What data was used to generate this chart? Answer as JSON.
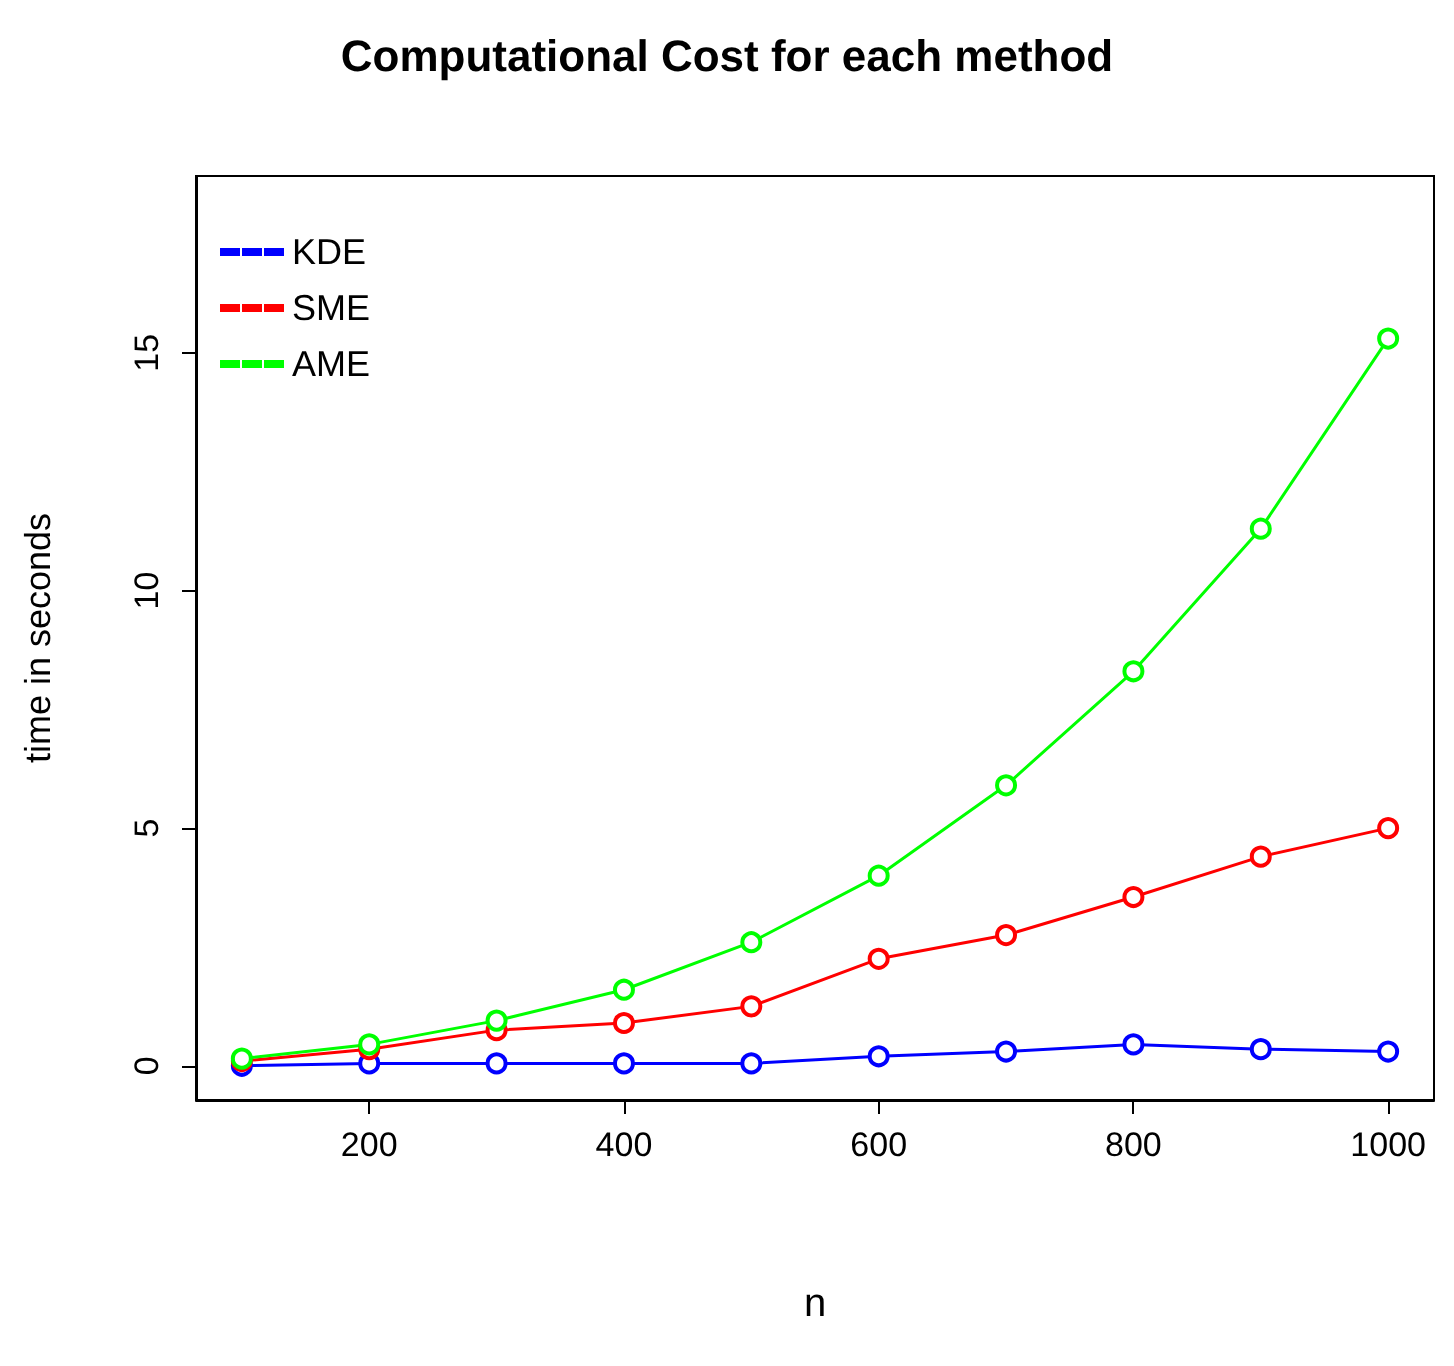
{
  "chart_data": {
    "type": "line",
    "title": "Computational Cost for each method",
    "xlabel": "n",
    "ylabel": "time in seconds",
    "x": [
      100,
      200,
      300,
      400,
      500,
      600,
      700,
      800,
      900,
      1000
    ],
    "series": [
      {
        "name": "KDE",
        "color": "#0000ff",
        "values": [
          0.0,
          0.05,
          0.05,
          0.05,
          0.05,
          0.2,
          0.3,
          0.45,
          0.35,
          0.3
        ]
      },
      {
        "name": "SME",
        "color": "#ff0000",
        "values": [
          0.1,
          0.35,
          0.75,
          0.9,
          1.25,
          2.25,
          2.75,
          3.55,
          4.4,
          5.0
        ]
      },
      {
        "name": "AME",
        "color": "#00ff00",
        "values": [
          0.15,
          0.45,
          0.95,
          1.6,
          2.6,
          4.0,
          5.9,
          8.3,
          11.3,
          15.3
        ]
      }
    ],
    "xlim": [
      64,
      1036
    ],
    "xticks": [
      200,
      400,
      600,
      800,
      1000
    ],
    "ylim": [
      -0.72,
      18.72
    ],
    "yticks": [
      0,
      5,
      10,
      15
    ],
    "grid": false,
    "legend": "top left",
    "marker": "circle",
    "line_style": "solid"
  }
}
